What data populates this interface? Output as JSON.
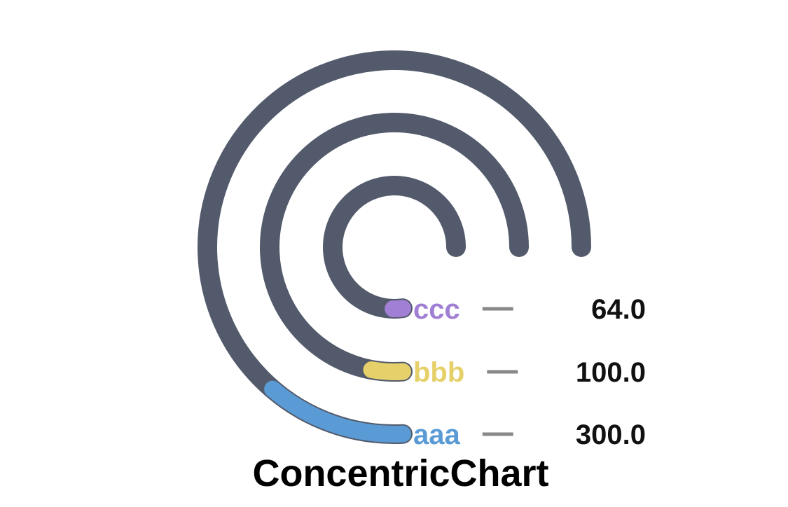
{
  "chart_data": {
    "type": "concentric",
    "title": "ConcentricChart",
    "track_color": "#525a6b",
    "separator_color": "#888888",
    "series": [
      {
        "name": "aaa",
        "value": 300.0,
        "value_label": "300.0",
        "fraction": 0.12,
        "color": "#5b9bd5"
      },
      {
        "name": "bbb",
        "value": 100.0,
        "value_label": "100.0",
        "fraction": 0.04,
        "color": "#e5d06a"
      },
      {
        "name": "ccc",
        "value": 64.0,
        "value_label": "64.0",
        "fraction": 0.025,
        "color": "#a07fd4"
      }
    ]
  }
}
